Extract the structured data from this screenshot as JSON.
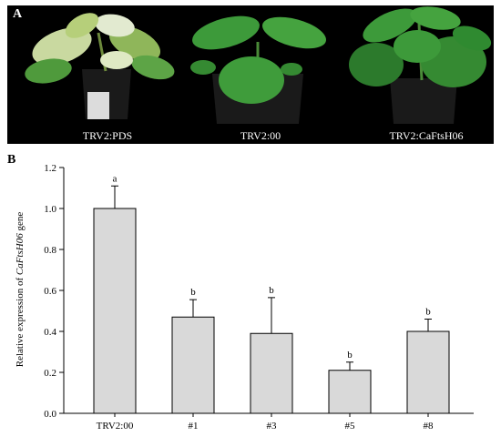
{
  "panel_a": {
    "letter": "A",
    "captions": [
      "TRV2:PDS",
      "TRV2:00",
      "TRV2:CaFtsH06"
    ],
    "background_color": "#000000",
    "leaf_colors": {
      "variegated": "#c9d9a0",
      "healthy": "#3d9a3a",
      "healthy_dark": "#2c7a2c"
    },
    "pot_color": "#1a1a1a"
  },
  "panel_b": {
    "letter": "B",
    "ylabel_prefix": "Relative expression of ",
    "ylabel_italic": "CaFtsH06",
    "ylabel_suffix": " gene"
  },
  "chart_data": {
    "type": "bar",
    "categories": [
      "TRV2:00",
      "#1",
      "#3",
      "#5",
      "#8"
    ],
    "values": [
      1.0,
      0.47,
      0.39,
      0.21,
      0.4
    ],
    "errors": [
      0.11,
      0.085,
      0.175,
      0.04,
      0.06
    ],
    "significance": [
      "a",
      "b",
      "b",
      "b",
      "b"
    ],
    "title": "",
    "xlabel": "",
    "ylabel": "Relative expression of CaFtsH06 gene",
    "ylim": [
      0,
      1.2
    ],
    "yticks": [
      0.0,
      0.2,
      0.4,
      0.6,
      0.8,
      1.0,
      1.2
    ],
    "bar_color": "#d9d9d9",
    "grid": false
  }
}
